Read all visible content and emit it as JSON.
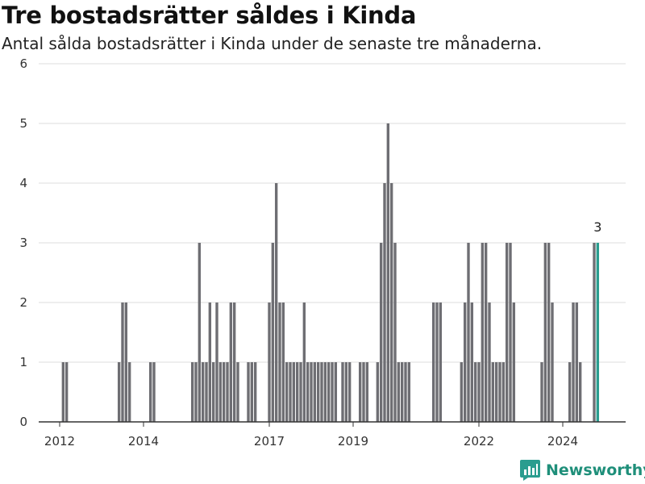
{
  "header": {
    "title": "Tre bostadsrätter såldes i Kinda",
    "subtitle": "Antal sålda bostadsrätter i Kinda under de senaste tre månaderna."
  },
  "brand": {
    "name": "Newsworthy",
    "icon": "newsworthy-logo-icon",
    "color": "#2a9d8f"
  },
  "chart_data": {
    "type": "bar",
    "title": "Tre bostadsrätter såldes i Kinda",
    "subtitle": "Antal sålda bostadsrätter i Kinda under de senaste tre månaderna.",
    "xlabel": "",
    "ylabel": "",
    "ylim": [
      0,
      6
    ],
    "yticks": [
      0,
      1,
      2,
      3,
      4,
      5,
      6
    ],
    "xlim": [
      "2011-07",
      "2025-07"
    ],
    "xticks": [
      "2012",
      "2014",
      "2017",
      "2019",
      "2022",
      "2024"
    ],
    "grid": true,
    "colors": {
      "bar": "#6e6e73",
      "highlight": "#2a9d8f"
    },
    "highlight_label": "3",
    "series": [
      {
        "values": [
          {
            "x": "2012-02",
            "y": 1
          },
          {
            "x": "2012-03",
            "y": 1
          },
          {
            "x": "2013-06",
            "y": 1
          },
          {
            "x": "2013-07",
            "y": 2
          },
          {
            "x": "2013-08",
            "y": 2
          },
          {
            "x": "2013-09",
            "y": 1
          },
          {
            "x": "2014-03",
            "y": 1
          },
          {
            "x": "2014-04",
            "y": 1
          },
          {
            "x": "2015-03",
            "y": 1
          },
          {
            "x": "2015-04",
            "y": 1
          },
          {
            "x": "2015-05",
            "y": 3
          },
          {
            "x": "2015-06",
            "y": 1
          },
          {
            "x": "2015-07",
            "y": 1
          },
          {
            "x": "2015-08",
            "y": 2
          },
          {
            "x": "2015-09",
            "y": 1
          },
          {
            "x": "2015-10",
            "y": 2
          },
          {
            "x": "2015-11",
            "y": 1
          },
          {
            "x": "2015-12",
            "y": 1
          },
          {
            "x": "2016-01",
            "y": 1
          },
          {
            "x": "2016-02",
            "y": 2
          },
          {
            "x": "2016-03",
            "y": 2
          },
          {
            "x": "2016-04",
            "y": 1
          },
          {
            "x": "2016-07",
            "y": 1
          },
          {
            "x": "2016-08",
            "y": 1
          },
          {
            "x": "2016-09",
            "y": 1
          },
          {
            "x": "2017-01",
            "y": 2
          },
          {
            "x": "2017-02",
            "y": 3
          },
          {
            "x": "2017-03",
            "y": 4
          },
          {
            "x": "2017-04",
            "y": 2
          },
          {
            "x": "2017-05",
            "y": 2
          },
          {
            "x": "2017-06",
            "y": 1
          },
          {
            "x": "2017-07",
            "y": 1
          },
          {
            "x": "2017-08",
            "y": 1
          },
          {
            "x": "2017-09",
            "y": 1
          },
          {
            "x": "2017-10",
            "y": 1
          },
          {
            "x": "2017-11",
            "y": 2
          },
          {
            "x": "2017-12",
            "y": 1
          },
          {
            "x": "2018-01",
            "y": 1
          },
          {
            "x": "2018-02",
            "y": 1
          },
          {
            "x": "2018-03",
            "y": 1
          },
          {
            "x": "2018-04",
            "y": 1
          },
          {
            "x": "2018-05",
            "y": 1
          },
          {
            "x": "2018-06",
            "y": 1
          },
          {
            "x": "2018-07",
            "y": 1
          },
          {
            "x": "2018-08",
            "y": 1
          },
          {
            "x": "2018-10",
            "y": 1
          },
          {
            "x": "2018-11",
            "y": 1
          },
          {
            "x": "2018-12",
            "y": 1
          },
          {
            "x": "2019-03",
            "y": 1
          },
          {
            "x": "2019-04",
            "y": 1
          },
          {
            "x": "2019-05",
            "y": 1
          },
          {
            "x": "2019-08",
            "y": 1
          },
          {
            "x": "2019-09",
            "y": 3
          },
          {
            "x": "2019-10",
            "y": 4
          },
          {
            "x": "2019-11",
            "y": 5
          },
          {
            "x": "2019-12",
            "y": 4
          },
          {
            "x": "2020-01",
            "y": 3
          },
          {
            "x": "2020-02",
            "y": 1
          },
          {
            "x": "2020-03",
            "y": 1
          },
          {
            "x": "2020-04",
            "y": 1
          },
          {
            "x": "2020-05",
            "y": 1
          },
          {
            "x": "2020-12",
            "y": 2
          },
          {
            "x": "2021-01",
            "y": 2
          },
          {
            "x": "2021-02",
            "y": 2
          },
          {
            "x": "2021-08",
            "y": 1
          },
          {
            "x": "2021-09",
            "y": 2
          },
          {
            "x": "2021-10",
            "y": 3
          },
          {
            "x": "2021-11",
            "y": 2
          },
          {
            "x": "2021-12",
            "y": 1
          },
          {
            "x": "2022-01",
            "y": 1
          },
          {
            "x": "2022-02",
            "y": 3
          },
          {
            "x": "2022-03",
            "y": 3
          },
          {
            "x": "2022-04",
            "y": 2
          },
          {
            "x": "2022-05",
            "y": 1
          },
          {
            "x": "2022-06",
            "y": 1
          },
          {
            "x": "2022-07",
            "y": 1
          },
          {
            "x": "2022-08",
            "y": 1
          },
          {
            "x": "2022-09",
            "y": 3
          },
          {
            "x": "2022-10",
            "y": 3
          },
          {
            "x": "2022-11",
            "y": 2
          },
          {
            "x": "2023-07",
            "y": 1
          },
          {
            "x": "2023-08",
            "y": 3
          },
          {
            "x": "2023-09",
            "y": 3
          },
          {
            "x": "2023-10",
            "y": 2
          },
          {
            "x": "2024-03",
            "y": 1
          },
          {
            "x": "2024-04",
            "y": 2
          },
          {
            "x": "2024-05",
            "y": 2
          },
          {
            "x": "2024-06",
            "y": 1
          },
          {
            "x": "2024-10",
            "y": 3
          },
          {
            "x": "2024-11",
            "y": 3
          }
        ]
      }
    ]
  }
}
